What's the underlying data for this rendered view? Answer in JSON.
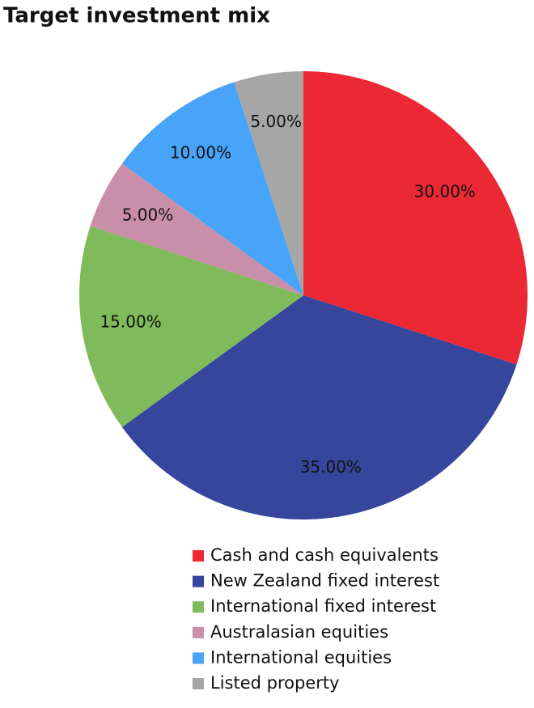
{
  "chart_data": {
    "type": "pie",
    "title": "Target investment mix",
    "categories": [
      "Cash and cash equivalents",
      "New Zealand fixed interest",
      "International fixed interest",
      "Australasian equities",
      "International equities",
      "Listed property"
    ],
    "values": [
      30,
      35,
      15,
      5,
      10,
      5
    ],
    "value_labels": [
      "30.00%",
      "35.00%",
      "15.00%",
      "5.00%",
      "10.00%",
      "5.00%"
    ],
    "colors": [
      "#ec2834",
      "#35469c",
      "#7fbb5a",
      "#c98fa9",
      "#47a4f8",
      "#a6a6a6"
    ],
    "legend": "bottom"
  }
}
